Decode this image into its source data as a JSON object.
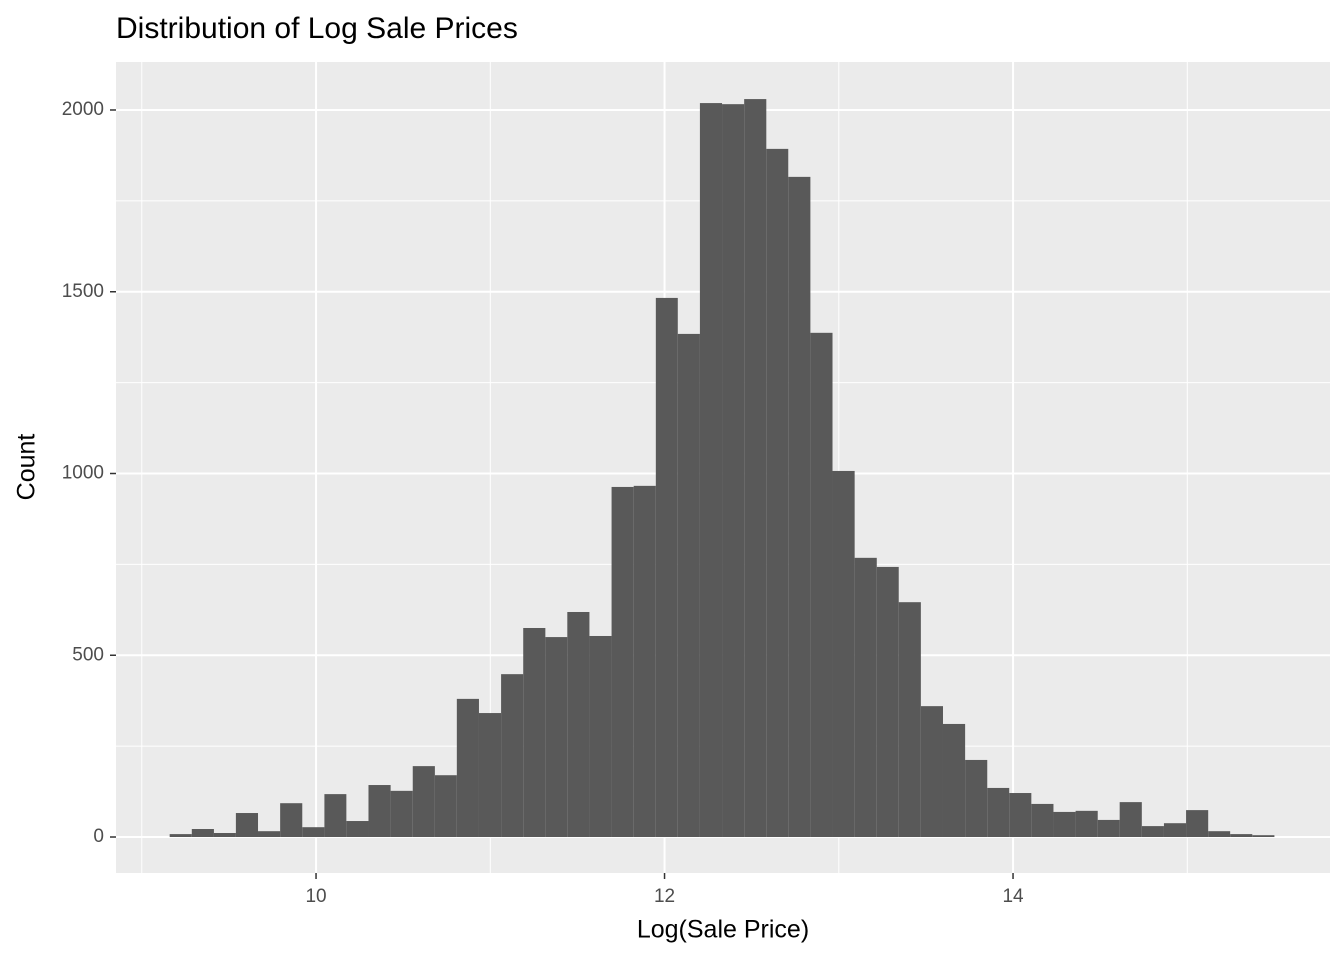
{
  "chart_data": {
    "type": "histogram",
    "title": "Distribution of Log Sale Prices",
    "x_label": "Log(Sale Price)",
    "y_label": "Count",
    "bins": [
      9.16,
      9.287,
      9.414,
      9.54,
      9.667,
      9.794,
      9.921,
      10.048,
      10.174,
      10.301,
      10.428,
      10.555,
      10.682,
      10.808,
      10.935,
      11.062,
      11.189,
      11.316,
      11.442,
      11.569,
      11.696,
      11.823,
      11.95,
      12.076,
      12.203,
      12.33,
      12.457,
      12.584,
      12.71,
      12.837,
      12.964,
      13.091,
      13.218,
      13.344,
      13.471,
      13.598,
      13.725,
      13.852,
      13.978,
      14.105,
      14.232,
      14.359,
      14.486,
      14.612,
      14.739,
      14.866,
      14.993,
      15.12,
      15.246,
      15.373,
      15.5
    ],
    "values": [
      8,
      22,
      11,
      66,
      16,
      93,
      27,
      118,
      44,
      143,
      127,
      195,
      170,
      380,
      341,
      448,
      575,
      550,
      619,
      553,
      963,
      966,
      1483,
      1384,
      2019,
      2016,
      2030,
      1893,
      1816,
      1387,
      1007,
      768,
      743,
      646,
      360,
      311,
      212,
      135,
      121,
      91,
      69,
      72,
      47,
      96,
      30,
      38,
      74,
      16,
      8,
      5
    ],
    "color": "#595959",
    "xlim": [
      8.852,
      15.819
    ],
    "ylim": [
      -99,
      2132
    ],
    "xticks": [
      10,
      12,
      14
    ],
    "yticks": [
      0,
      500,
      1000,
      1500,
      2000
    ],
    "xminor": [
      9,
      11,
      13,
      15
    ],
    "yminor": [
      250,
      750,
      1250,
      1750
    ],
    "grid": true
  }
}
